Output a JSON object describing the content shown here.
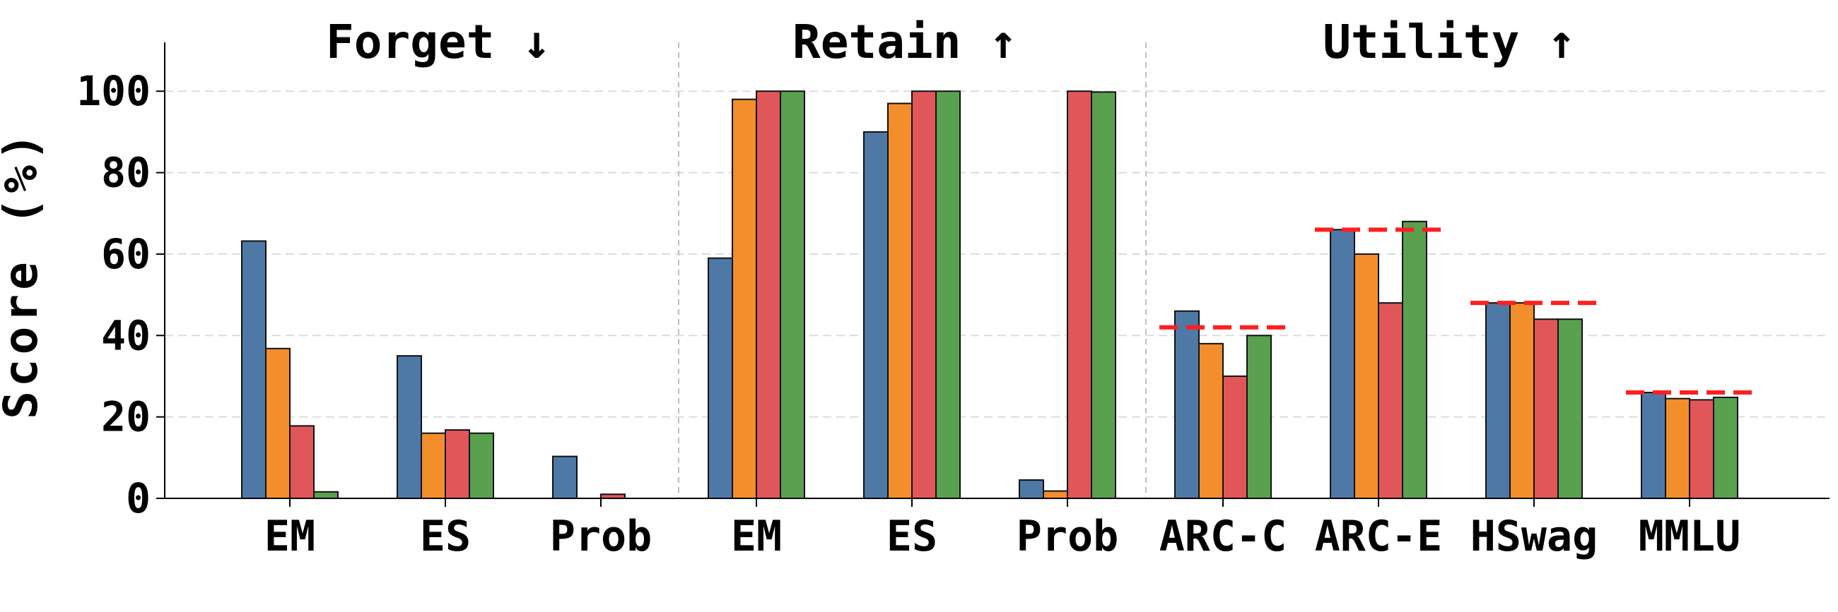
{
  "chart_data": {
    "type": "bar",
    "ylabel": "Score (%)",
    "ylim": [
      0,
      112
    ],
    "yticks": [
      0,
      20,
      40,
      60,
      80,
      100
    ],
    "grid": "horizontal-dashed",
    "legend": "none",
    "categories": [
      "EM",
      "ES",
      "Prob",
      "EM",
      "ES",
      "Prob",
      "ARC-C",
      "ARC-E",
      "HSwag",
      "MMLU"
    ],
    "groups": [
      {
        "title": "Forget ↓",
        "categories": [
          0,
          1,
          2
        ]
      },
      {
        "title": "Retain ↑",
        "categories": [
          3,
          4,
          5
        ]
      },
      {
        "title": "Utility ↑",
        "categories": [
          6,
          7,
          8,
          9
        ]
      }
    ],
    "series_colors": [
      "#4e79a7",
      "#f28e2b",
      "#e15759",
      "#59a14f"
    ],
    "series": [
      {
        "values": [
          63.2,
          35.0,
          10.3,
          59.0,
          90.0,
          4.5,
          46.0,
          66.0,
          48.0,
          26.0
        ]
      },
      {
        "values": [
          36.8,
          16.0,
          0.0,
          98.0,
          97.0,
          1.8,
          38.0,
          60.0,
          48.0,
          24.5
        ]
      },
      {
        "values": [
          17.8,
          16.8,
          1.0,
          100.0,
          100.0,
          100.0,
          30.0,
          48.0,
          44.0,
          24.2
        ]
      },
      {
        "values": [
          1.6,
          16.0,
          0.0,
          100.0,
          100.0,
          99.8,
          40.0,
          68.0,
          44.0,
          24.8
        ]
      }
    ],
    "reference_lines": {
      "color": "#ff1f1f",
      "style": "dashed",
      "values": [
        null,
        null,
        null,
        null,
        null,
        null,
        42.0,
        66.0,
        48.0,
        26.0
      ]
    }
  }
}
